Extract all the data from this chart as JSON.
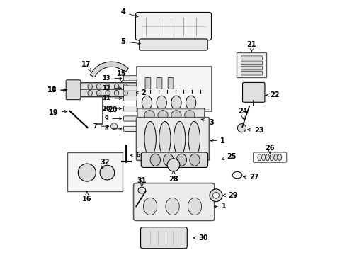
{
  "background_color": "#ffffff",
  "fig_width": 4.9,
  "fig_height": 3.6,
  "dpi": 100,
  "line_color": "#000000",
  "font_size": 7
}
